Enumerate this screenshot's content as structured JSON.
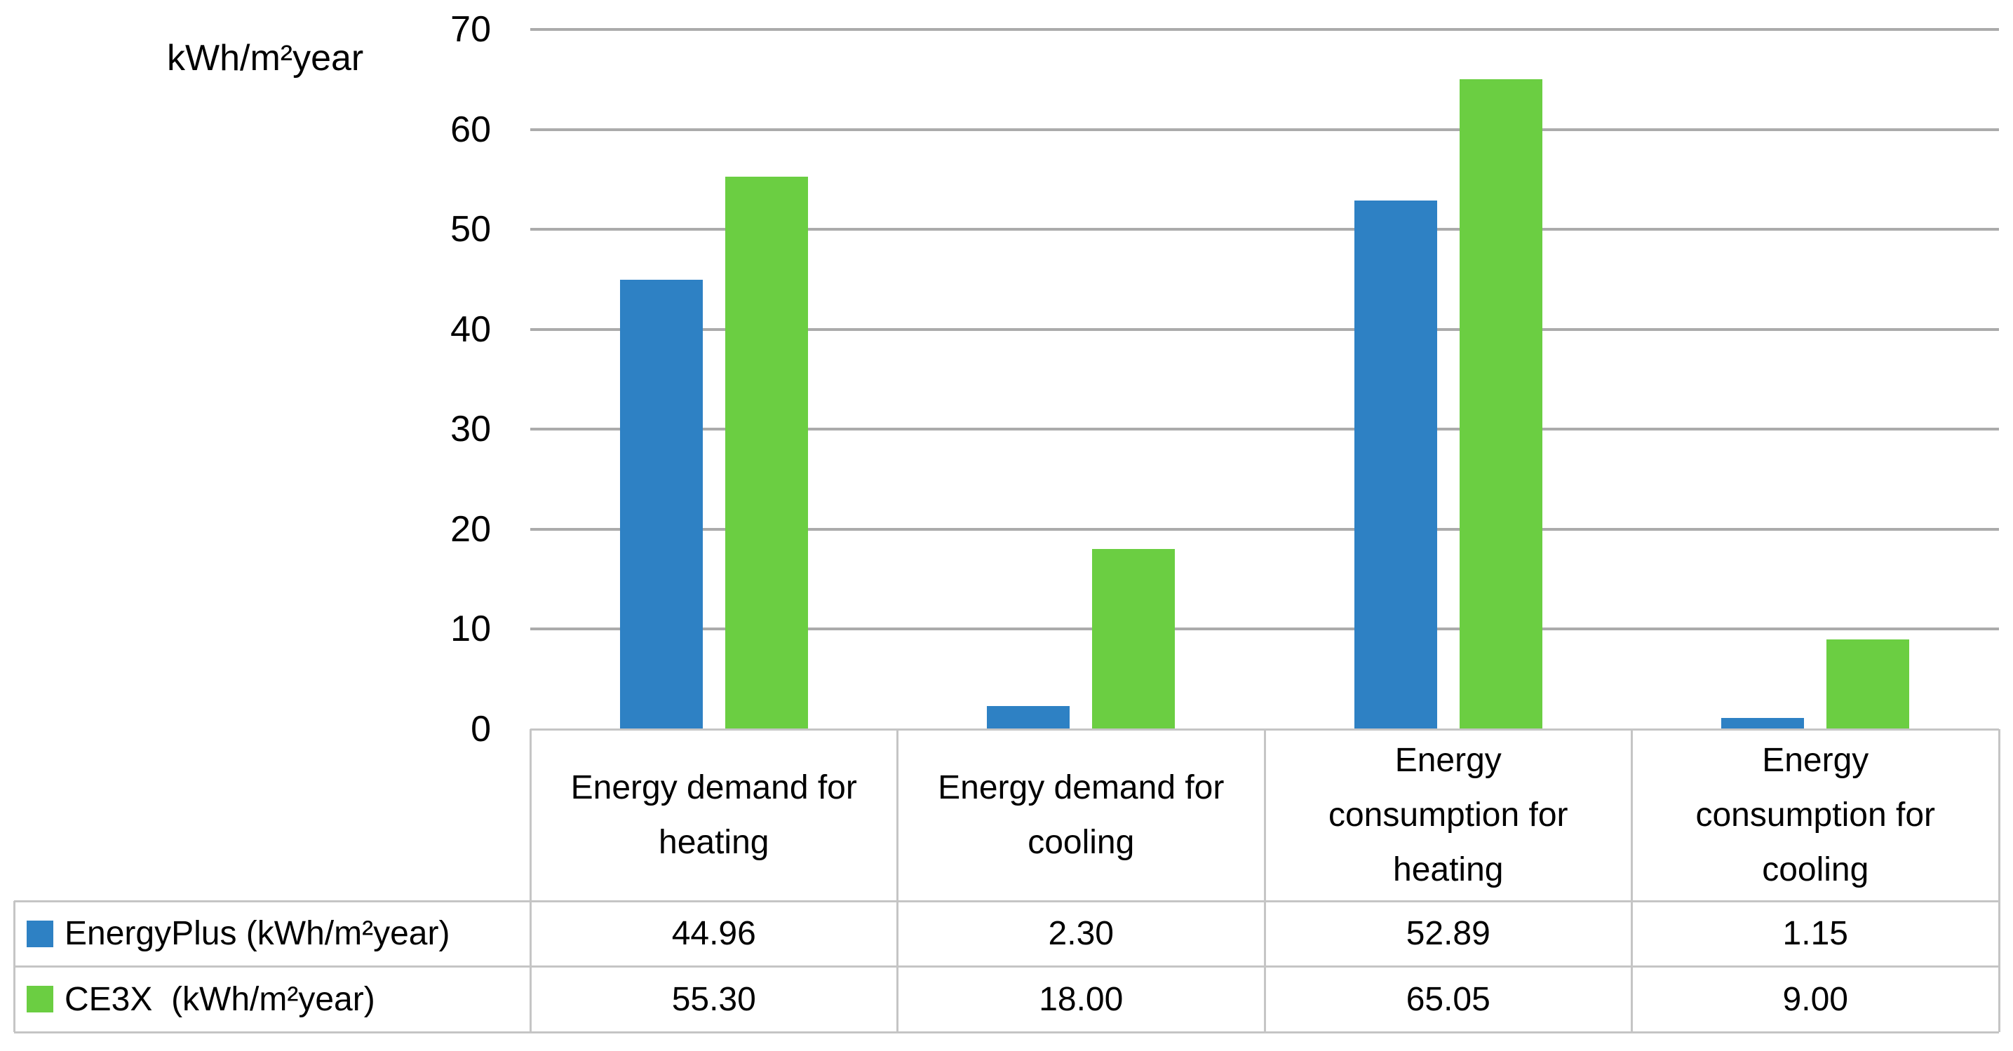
{
  "chart_data": {
    "type": "bar",
    "title": "",
    "ylabel": "kWh/m²year",
    "xlabel": "",
    "ylim": [
      0,
      70
    ],
    "ytick_interval": 10,
    "yticks": [
      70,
      60,
      50,
      40,
      30,
      20,
      10,
      0
    ],
    "grid": true,
    "legend_position": "data-table-left",
    "gridline_color": "#ABABAB",
    "table_border_color": "#C5C5C5",
    "categories": [
      "Energy demand for heating",
      "Energy demand for cooling",
      "Energy consumption for heating",
      "Energy consumption for cooling"
    ],
    "category_lines": [
      [
        "Energy demand for",
        "heating"
      ],
      [
        "Energy demand for",
        "cooling"
      ],
      [
        "Energy",
        "consumption for",
        "heating"
      ],
      [
        "Energy",
        "consumption for",
        "cooling"
      ]
    ],
    "series": [
      {
        "name": "EnergyPlus (kWh/m²year)",
        "slug": "energyplus",
        "color": "#2E81C4",
        "values": [
          44.96,
          2.3,
          52.89,
          1.15
        ],
        "display_values": [
          "44.96",
          "2.30",
          "52.89",
          "1.15"
        ]
      },
      {
        "name": "CE3X  (kWh/m²year)",
        "slug": "ce3x",
        "color": "#6BCE42",
        "values": [
          55.3,
          18.0,
          65.05,
          9.0
        ],
        "display_values": [
          "55.30",
          "18.00",
          "65.05",
          "9.00"
        ]
      }
    ]
  }
}
